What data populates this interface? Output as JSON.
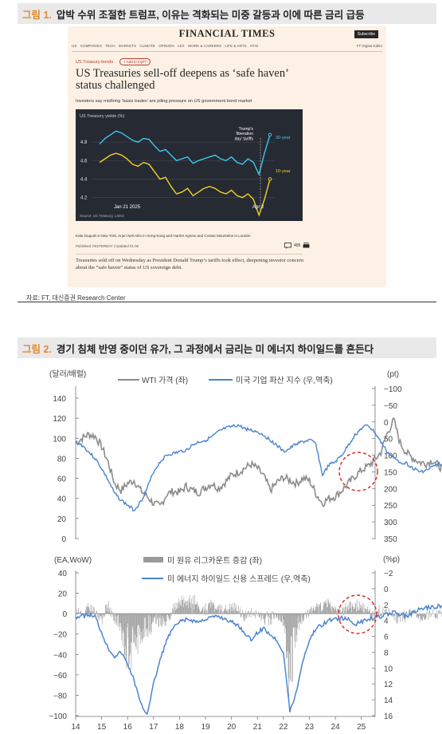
{
  "figure1": {
    "label": "그림 1.",
    "title": "압박 수위 조절한 트럼프, 이유는 격화되는 미중 갈등과 이에 따른 금리 급등",
    "source": "자료: FT, 대신증권 Research Center",
    "article": {
      "masthead": "FINANCIAL TIMES",
      "subscribe": "Subscribe",
      "nav": [
        "US",
        "COMPANIES",
        "TECH",
        "MARKETS",
        "CLIMATE",
        "OPINION",
        "LEX",
        "WORK & CAREERS",
        "LIFE & ARTS",
        "HTSI"
      ],
      "edition": "FT Digital Editio",
      "tag": "US Treasury bonds",
      "add_button": "+ Add to myFT",
      "headline": "US Treasuries sell-off deepens as ‘safe haven’ status challenged",
      "standfirst": "Investors say misfiring ‘basis trades’ are piling pressure on US government bond market",
      "byline": "Kate Duguid in New York, Arjun Neil Alim in Hong Kong and Harriet Agnew and Costas Mourselos in London",
      "published": "Published YESTERDAY | Updated 01:06",
      "comments": "405",
      "body": "Treasuries sold off on Wednesday as President Donald Trump’s tariffs took effect, deepening investor concern about the “safe haven” status of US sovereign debt."
    }
  },
  "figure2": {
    "label": "그림 2.",
    "title": "경기 침체 반영 중이던 유가, 그 과정에서 금리는 미 에너지 하이일드를 흔든다"
  },
  "colors": {
    "header_bg": "#e9e9e9",
    "header_number": "#e08a2e",
    "ft_background": "#fdf1e5",
    "ft_chart_background": "#262a33",
    "ft_30y": "#3ec6ef",
    "ft_10y": "#f2d22a",
    "wti": "#8c8c8c",
    "bankruptcy": "#4b84cf",
    "rig_change": "#9a9a9a",
    "hy_spread": "#4b84cf",
    "highlight_circle": "#e02020"
  },
  "chart_data": [
    {
      "type": "line",
      "title": "US Treasury yields (%)",
      "source": "Source: US Treasury, LSEG",
      "x_labels": [
        "Jan 21 2025",
        "Apr 2"
      ],
      "annotation": "Trump's 'liberation day' tariffs",
      "y_ticks": [
        4.2,
        4.4,
        4.6,
        4.8
      ],
      "ylim": [
        4.05,
        5.0
      ],
      "series": [
        {
          "name": "30-year",
          "color": "#3ec6ef",
          "values": [
            4.78,
            4.84,
            4.88,
            4.92,
            4.9,
            4.86,
            4.82,
            4.8,
            4.84,
            4.83,
            4.76,
            4.7,
            4.72,
            4.66,
            4.6,
            4.62,
            4.64,
            4.57,
            4.6,
            4.62,
            4.64,
            4.66,
            4.62,
            4.6,
            4.64,
            4.58,
            4.56,
            4.62,
            4.58,
            4.45,
            4.68,
            4.88
          ]
        },
        {
          "name": "10-year",
          "color": "#f2d22a",
          "values": [
            4.58,
            4.62,
            4.66,
            4.68,
            4.66,
            4.62,
            4.56,
            4.54,
            4.58,
            4.56,
            4.48,
            4.4,
            4.42,
            4.32,
            4.24,
            4.26,
            4.3,
            4.22,
            4.26,
            4.3,
            4.32,
            4.3,
            4.26,
            4.24,
            4.28,
            4.22,
            4.2,
            4.24,
            4.18,
            4.01,
            4.18,
            4.4
          ]
        }
      ]
    },
    {
      "type": "line",
      "legend": [
        "WTI 가격 (좌)",
        "미국 기업 파산 지수 (우,역축)"
      ],
      "left_axis_label": "(달러/배럴)",
      "right_axis_label": "(pt)",
      "left_ticks": [
        0,
        20,
        40,
        60,
        80,
        100,
        120,
        140
      ],
      "right_ticks": [
        -100,
        -50,
        0,
        50,
        100,
        150,
        200,
        250,
        300,
        350
      ],
      "ylim_left": [
        0,
        140
      ],
      "ylim_right_inverted": [
        -100,
        350
      ],
      "x_start": 2014.0,
      "x_step": 0.25,
      "series": [
        {
          "name": "WTI 가격 (좌)",
          "color": "#8c8c8c",
          "values": [
            95,
            100,
            104,
            102,
            92,
            76,
            55,
            48,
            55,
            58,
            48,
            42,
            35,
            32,
            44,
            47,
            46,
            52,
            48,
            46,
            51,
            55,
            50,
            56,
            63,
            66,
            70,
            74,
            70,
            62,
            48,
            56,
            61,
            58,
            55,
            60,
            58,
            45,
            35,
            40,
            42,
            48,
            55,
            62,
            68,
            72,
            78,
            86,
            105,
            118,
            95,
            85,
            80,
            76,
            75,
            78,
            72,
            68,
            75,
            88,
            78,
            73,
            80,
            75,
            70,
            72,
            68,
            70,
            66,
            60
          ]
        },
        {
          "name": "미국 기업 파산 지수 (우,역축)",
          "color": "#4b84cf",
          "values": [
            60,
            70,
            90,
            110,
            140,
            175,
            215,
            235,
            250,
            265,
            240,
            200,
            150,
            120,
            100,
            95,
            90,
            85,
            70,
            60,
            55,
            45,
            30,
            20,
            15,
            10,
            20,
            25,
            30,
            40,
            55,
            70,
            90,
            80,
            65,
            60,
            55,
            65,
            160,
            130,
            120,
            100,
            70,
            40,
            20,
            10,
            30,
            60,
            90,
            110,
            120,
            125,
            140,
            150,
            145,
            135,
            125,
            140,
            150,
            145,
            140,
            130,
            120,
            110,
            120,
            125,
            115,
            110,
            120,
            130
          ]
        }
      ]
    },
    {
      "type": "bar",
      "legend": [
        "미 원유 리그카운트 증감 (좌)",
        "미 에너지 하이일드 신용 스프레드 (우,역축)"
      ],
      "left_axis_label": "(EA,WoW)",
      "right_axis_label": "(%p)",
      "left_ticks": [
        -100,
        -80,
        -60,
        -40,
        -20,
        0,
        20,
        40
      ],
      "right_ticks": [
        -2,
        0,
        2,
        4,
        6,
        8,
        10,
        12,
        14,
        16
      ],
      "ylim_left": [
        -100,
        40
      ],
      "ylim_right_inverted": [
        -2,
        16
      ],
      "x_labels": [
        "14",
        "15",
        "16",
        "17",
        "18",
        "19",
        "20",
        "21",
        "22",
        "23",
        "24",
        "25"
      ],
      "x_start": 2014.0,
      "x_step": 0.25,
      "series": [
        {
          "name": "미 에너지 하이일드 신용 스프레드 (우,역축)",
          "color": "#4b84cf",
          "values": [
            3.6,
            3.4,
            3.3,
            3.5,
            5.5,
            7.5,
            8.5,
            8.0,
            9.5,
            11.5,
            14.5,
            15.8,
            12.0,
            9.0,
            6.5,
            5.0,
            4.2,
            3.9,
            4.0,
            4.2,
            3.8,
            3.6,
            3.5,
            3.8,
            4.2,
            4.6,
            5.5,
            6.5,
            5.5,
            5.0,
            5.8,
            6.5,
            8.0,
            15.5,
            13.0,
            9.0,
            6.5,
            5.0,
            4.5,
            4.0,
            3.8,
            3.7,
            3.9,
            4.5,
            4.2,
            3.8,
            3.6,
            3.5,
            3.2,
            3.0,
            3.2,
            3.4,
            3.0,
            2.6,
            2.4,
            2.3,
            2.2,
            2.0,
            1.8,
            1.8,
            1.6,
            1.7,
            1.5,
            1.8,
            2.0,
            2.1,
            1.9,
            2.2,
            3.0,
            3.8
          ]
        },
        {
          "name": "미 원유 리그카운트 증감 (좌)",
          "color": "#9a9a9a",
          "values": [
            4,
            -2,
            6,
            3,
            -5,
            8,
            -6,
            -12,
            -38,
            -28,
            -20,
            -14,
            -10,
            -6,
            -8,
            4,
            8,
            10,
            12,
            6,
            4,
            8,
            5,
            3,
            6,
            4,
            -3,
            2,
            -2,
            -4,
            -5,
            -3,
            -8,
            -60,
            -15,
            -5,
            3,
            6,
            9,
            8,
            5,
            4,
            6,
            8,
            5,
            3,
            -2,
            4,
            2,
            -4,
            -3,
            -2,
            2,
            -3,
            -2,
            1,
            -1,
            2,
            -2,
            1,
            -1,
            2,
            -3,
            -2,
            1,
            -2,
            -1,
            1,
            -4,
            -6
          ]
        }
      ]
    }
  ]
}
